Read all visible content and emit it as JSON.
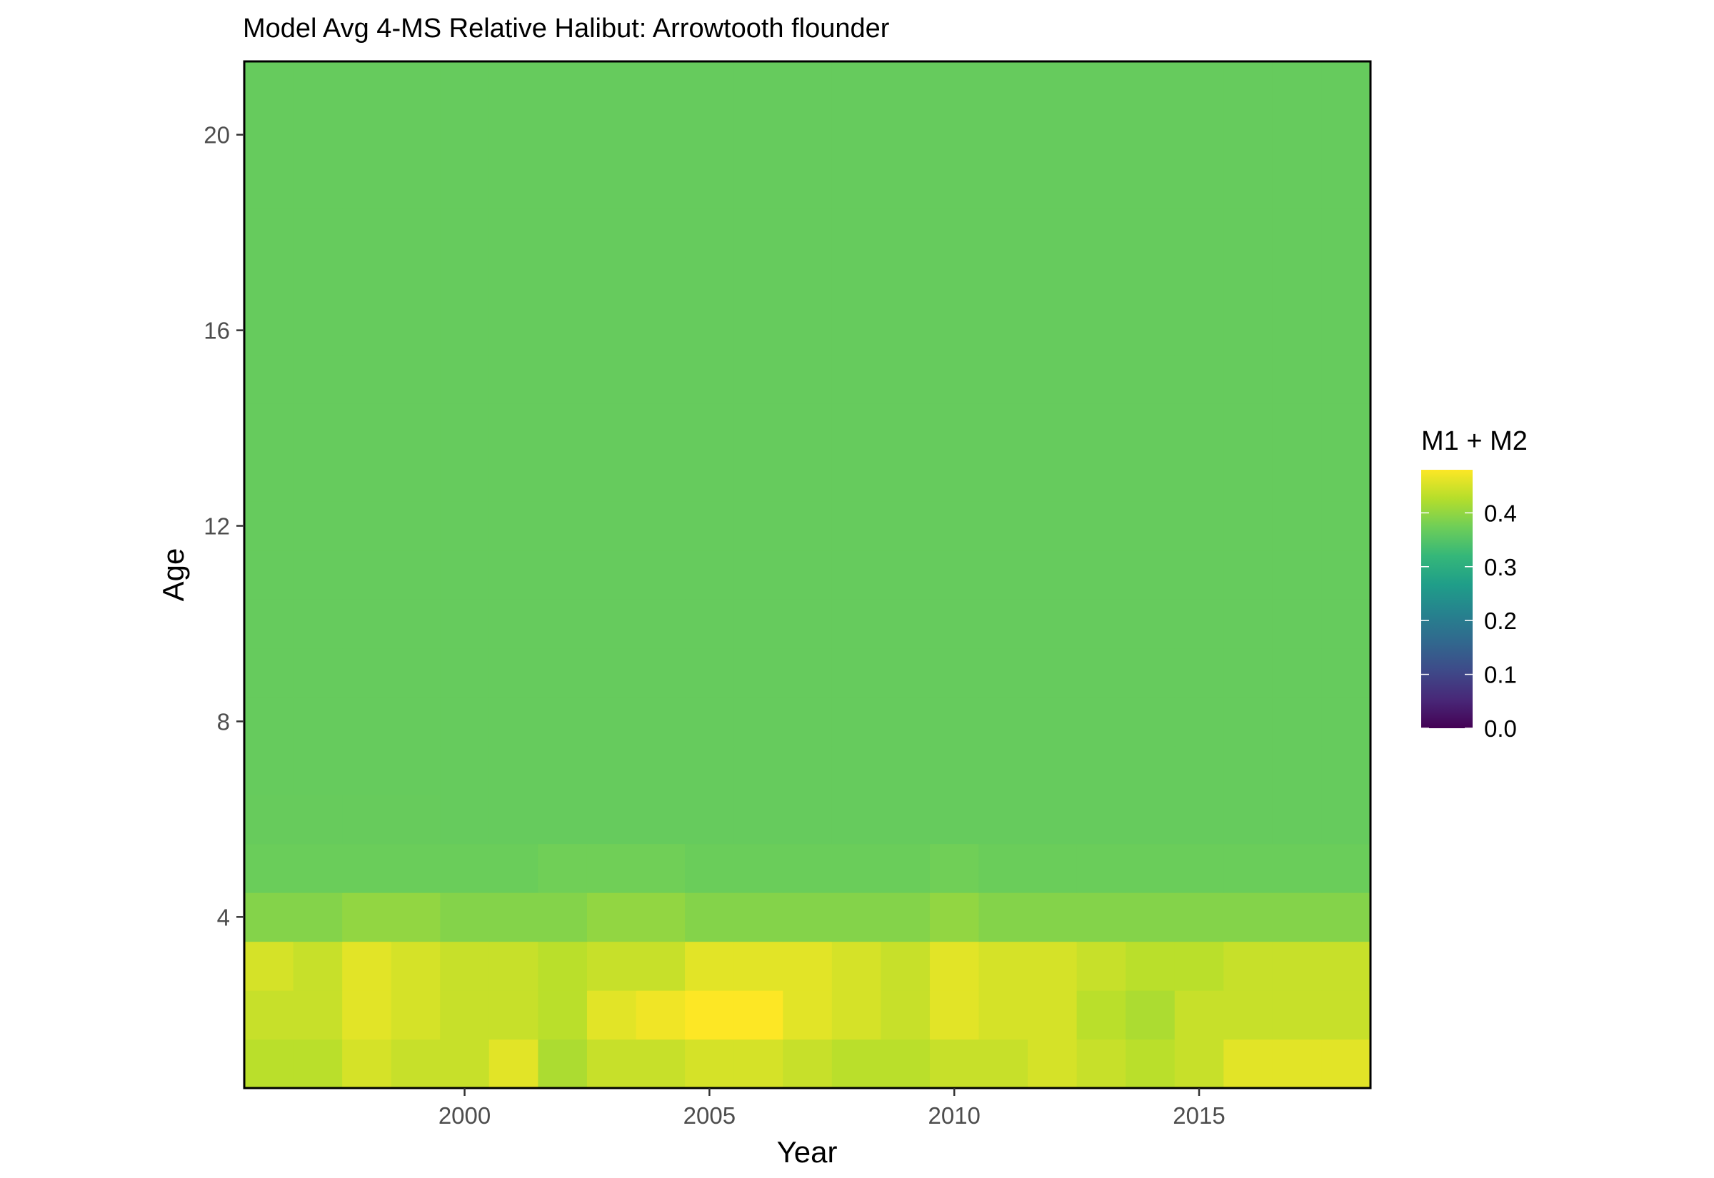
{
  "chart_data": {
    "type": "heatmap",
    "title": "Model Avg 4-MS Relative Halibut: Arrowtooth flounder",
    "xlabel": "Year",
    "ylabel": "Age",
    "x_ticks": [
      2000,
      2005,
      2010,
      2015
    ],
    "y_ticks": [
      4,
      8,
      12,
      16,
      20
    ],
    "xlim": [
      1995.5,
      2018.5
    ],
    "ylim": [
      0.5,
      21.5
    ],
    "years": [
      1996,
      1997,
      1998,
      1999,
      2000,
      2001,
      2002,
      2003,
      2004,
      2005,
      2006,
      2007,
      2008,
      2009,
      2010,
      2011,
      2012,
      2013,
      2014,
      2015,
      2016,
      2017,
      2018
    ],
    "ages": [
      1,
      2,
      3,
      4,
      5,
      6,
      7,
      8,
      9,
      10,
      11,
      12,
      13,
      14,
      15,
      16,
      17,
      18,
      19,
      20,
      21
    ],
    "values": [
      [
        0.43,
        0.43,
        0.45,
        0.44,
        0.44,
        0.46,
        0.42,
        0.44,
        0.44,
        0.45,
        0.45,
        0.44,
        0.43,
        0.43,
        0.44,
        0.44,
        0.45,
        0.44,
        0.43,
        0.44,
        0.46,
        0.46,
        0.46
      ],
      [
        0.44,
        0.44,
        0.46,
        0.45,
        0.44,
        0.44,
        0.43,
        0.46,
        0.47,
        0.48,
        0.48,
        0.46,
        0.45,
        0.44,
        0.46,
        0.45,
        0.45,
        0.43,
        0.42,
        0.44,
        0.44,
        0.44,
        0.44
      ],
      [
        0.45,
        0.44,
        0.46,
        0.45,
        0.44,
        0.44,
        0.43,
        0.44,
        0.44,
        0.46,
        0.46,
        0.46,
        0.45,
        0.44,
        0.46,
        0.45,
        0.45,
        0.44,
        0.43,
        0.43,
        0.44,
        0.44,
        0.44
      ],
      [
        0.39,
        0.39,
        0.4,
        0.4,
        0.39,
        0.39,
        0.39,
        0.4,
        0.4,
        0.39,
        0.39,
        0.39,
        0.39,
        0.39,
        0.4,
        0.39,
        0.39,
        0.39,
        0.39,
        0.39,
        0.39,
        0.39,
        0.39
      ],
      [
        0.37,
        0.37,
        0.37,
        0.37,
        0.37,
        0.37,
        0.375,
        0.375,
        0.375,
        0.37,
        0.37,
        0.37,
        0.37,
        0.37,
        0.375,
        0.37,
        0.37,
        0.37,
        0.37,
        0.37,
        0.37,
        0.37,
        0.37
      ],
      [
        0.367,
        0.367,
        0.367,
        0.367,
        0.366,
        0.366,
        0.366,
        0.366,
        0.366,
        0.366,
        0.366,
        0.366,
        0.366,
        0.366,
        0.366,
        0.366,
        0.366,
        0.366,
        0.366,
        0.366,
        0.366,
        0.366,
        0.366
      ],
      [
        0.366,
        0.366,
        0.366,
        0.366,
        0.366,
        0.366,
        0.366,
        0.366,
        0.366,
        0.366,
        0.366,
        0.366,
        0.366,
        0.366,
        0.366,
        0.366,
        0.366,
        0.366,
        0.366,
        0.366,
        0.366,
        0.366,
        0.366
      ],
      [
        0.366,
        0.366,
        0.366,
        0.366,
        0.366,
        0.366,
        0.366,
        0.366,
        0.366,
        0.366,
        0.366,
        0.366,
        0.366,
        0.366,
        0.366,
        0.366,
        0.366,
        0.366,
        0.366,
        0.366,
        0.366,
        0.366,
        0.366
      ],
      [
        0.366,
        0.366,
        0.366,
        0.366,
        0.366,
        0.366,
        0.366,
        0.366,
        0.366,
        0.366,
        0.366,
        0.366,
        0.366,
        0.366,
        0.366,
        0.366,
        0.366,
        0.366,
        0.366,
        0.366,
        0.366,
        0.366,
        0.366
      ],
      [
        0.366,
        0.366,
        0.366,
        0.366,
        0.366,
        0.366,
        0.366,
        0.366,
        0.366,
        0.366,
        0.366,
        0.366,
        0.366,
        0.366,
        0.366,
        0.366,
        0.366,
        0.366,
        0.366,
        0.366,
        0.366,
        0.366,
        0.366
      ],
      [
        0.366,
        0.366,
        0.366,
        0.366,
        0.366,
        0.366,
        0.366,
        0.366,
        0.366,
        0.366,
        0.366,
        0.366,
        0.366,
        0.366,
        0.366,
        0.366,
        0.366,
        0.366,
        0.366,
        0.366,
        0.366,
        0.366,
        0.366
      ],
      [
        0.366,
        0.366,
        0.366,
        0.366,
        0.366,
        0.366,
        0.366,
        0.366,
        0.366,
        0.366,
        0.366,
        0.366,
        0.366,
        0.366,
        0.366,
        0.366,
        0.366,
        0.366,
        0.366,
        0.366,
        0.366,
        0.366,
        0.366
      ],
      [
        0.366,
        0.366,
        0.366,
        0.366,
        0.366,
        0.366,
        0.366,
        0.366,
        0.366,
        0.366,
        0.366,
        0.366,
        0.366,
        0.366,
        0.366,
        0.366,
        0.366,
        0.366,
        0.366,
        0.366,
        0.366,
        0.366,
        0.366
      ],
      [
        0.366,
        0.366,
        0.366,
        0.366,
        0.366,
        0.366,
        0.366,
        0.366,
        0.366,
        0.366,
        0.366,
        0.366,
        0.366,
        0.366,
        0.366,
        0.366,
        0.366,
        0.366,
        0.366,
        0.366,
        0.366,
        0.366,
        0.366
      ],
      [
        0.366,
        0.366,
        0.366,
        0.366,
        0.366,
        0.366,
        0.366,
        0.366,
        0.366,
        0.366,
        0.366,
        0.366,
        0.366,
        0.366,
        0.366,
        0.366,
        0.366,
        0.366,
        0.366,
        0.366,
        0.366,
        0.366,
        0.366
      ],
      [
        0.366,
        0.366,
        0.366,
        0.366,
        0.366,
        0.366,
        0.366,
        0.366,
        0.366,
        0.366,
        0.366,
        0.366,
        0.366,
        0.366,
        0.366,
        0.366,
        0.366,
        0.366,
        0.366,
        0.366,
        0.366,
        0.366,
        0.366
      ],
      [
        0.366,
        0.366,
        0.366,
        0.366,
        0.366,
        0.366,
        0.366,
        0.366,
        0.366,
        0.366,
        0.366,
        0.366,
        0.366,
        0.366,
        0.366,
        0.366,
        0.366,
        0.366,
        0.366,
        0.366,
        0.366,
        0.366,
        0.366
      ],
      [
        0.366,
        0.366,
        0.366,
        0.366,
        0.366,
        0.366,
        0.366,
        0.366,
        0.366,
        0.366,
        0.366,
        0.366,
        0.366,
        0.366,
        0.366,
        0.366,
        0.366,
        0.366,
        0.366,
        0.366,
        0.366,
        0.366,
        0.366
      ],
      [
        0.366,
        0.366,
        0.366,
        0.366,
        0.366,
        0.366,
        0.366,
        0.366,
        0.366,
        0.366,
        0.366,
        0.366,
        0.366,
        0.366,
        0.366,
        0.366,
        0.366,
        0.366,
        0.366,
        0.366,
        0.366,
        0.366,
        0.366
      ],
      [
        0.366,
        0.366,
        0.366,
        0.366,
        0.366,
        0.366,
        0.366,
        0.366,
        0.366,
        0.366,
        0.366,
        0.366,
        0.366,
        0.366,
        0.366,
        0.366,
        0.366,
        0.366,
        0.366,
        0.366,
        0.366,
        0.366,
        0.366
      ],
      [
        0.366,
        0.366,
        0.366,
        0.366,
        0.366,
        0.366,
        0.366,
        0.366,
        0.366,
        0.366,
        0.366,
        0.366,
        0.366,
        0.366,
        0.366,
        0.366,
        0.366,
        0.366,
        0.366,
        0.366,
        0.366,
        0.366,
        0.366
      ]
    ],
    "legend": {
      "title": "M1 + M2",
      "position": "right",
      "breaks": [
        0.0,
        0.1,
        0.2,
        0.3,
        0.4
      ],
      "labels": [
        "0.0",
        "0.1",
        "0.2",
        "0.3",
        "0.4"
      ],
      "range": [
        0.0,
        0.48
      ]
    },
    "colorscale": "viridis",
    "colors": [
      "#440154",
      "#482878",
      "#3e4a89",
      "#31688e",
      "#26828e",
      "#1f9e89",
      "#35b779",
      "#6ece58",
      "#b5de2b",
      "#fde725"
    ],
    "grid": false
  }
}
